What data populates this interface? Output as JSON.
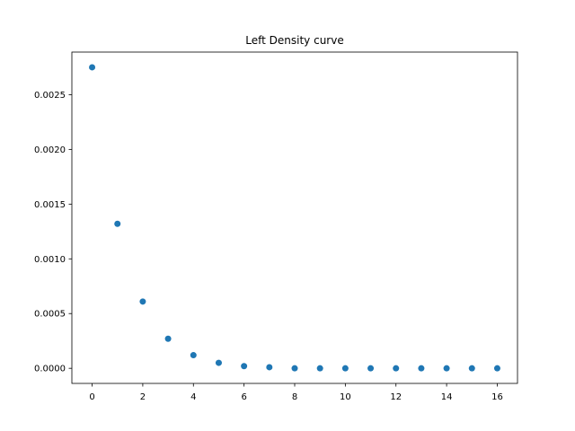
{
  "chart_data": {
    "type": "scatter",
    "title": "Left Density curve",
    "xlabel": "",
    "ylabel": "",
    "xlim": [
      -0.8,
      16.8
    ],
    "ylim": [
      -0.000138,
      0.002889
    ],
    "x_ticks": [
      0,
      2,
      4,
      6,
      8,
      10,
      12,
      14,
      16
    ],
    "y_ticks": [
      0.0,
      0.0005,
      0.001,
      0.0015,
      0.002,
      0.0025
    ],
    "y_tick_labels": [
      "0.0000",
      "0.0005",
      "0.0010",
      "0.0015",
      "0.0020",
      "0.0025"
    ],
    "grid": false,
    "series": [
      {
        "color": "#1f77b4",
        "x": [
          0,
          1,
          2,
          3,
          4,
          5,
          6,
          7,
          8,
          9,
          10,
          11,
          12,
          13,
          14,
          15,
          16
        ],
        "y": [
          0.00275,
          0.00132,
          0.00061,
          0.00027,
          0.00012,
          5e-05,
          2e-05,
          1e-05,
          0.0,
          0.0,
          0.0,
          0.0,
          0.0,
          0.0,
          0.0,
          0.0,
          0.0
        ]
      }
    ]
  }
}
